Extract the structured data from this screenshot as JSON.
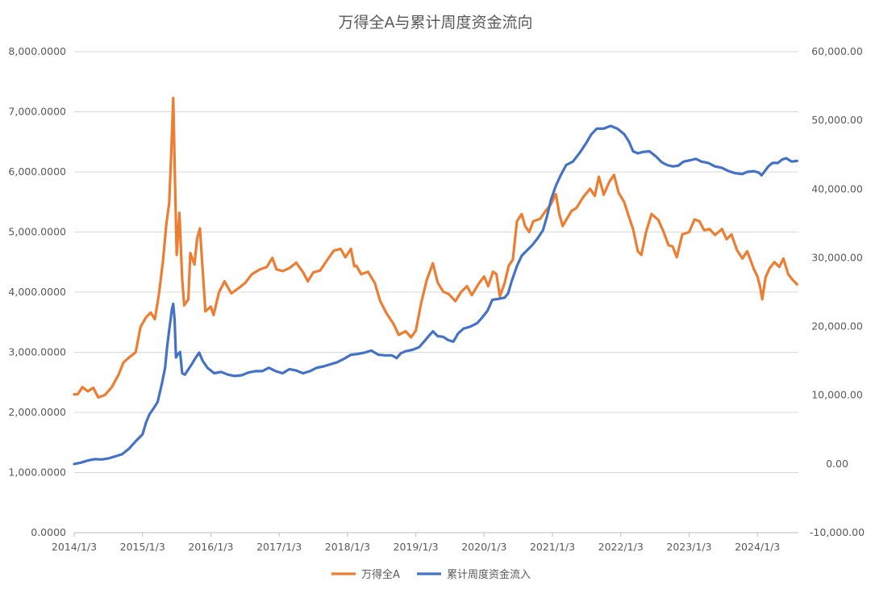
{
  "chart_data": {
    "type": "line",
    "title": "万得全A与累计周度资金流向",
    "x_ticks": [
      "2014/1/3",
      "2015/1/3",
      "2016/1/3",
      "2017/1/3",
      "2018/1/3",
      "2019/1/3",
      "2020/1/3",
      "2021/1/3",
      "2022/1/3",
      "2023/1/3",
      "2024/1/3"
    ],
    "x_range": [
      2014.0,
      2024.6
    ],
    "y_left": {
      "ylim": [
        0,
        8000
      ],
      "tick_values": [
        0,
        1000,
        2000,
        3000,
        4000,
        5000,
        6000,
        7000,
        8000
      ],
      "tick_labels": [
        "0.0000",
        "1,000.0000",
        "2,000.0000",
        "3,000.0000",
        "4,000.0000",
        "5,000.0000",
        "6,000.0000",
        "7,000.0000",
        "8,000.0000"
      ]
    },
    "y_right": {
      "ylim": [
        -10000,
        60000
      ],
      "tick_values": [
        -10000,
        0,
        10000,
        20000,
        30000,
        40000,
        50000,
        60000
      ],
      "tick_labels": [
        "-10,000.00",
        "0.00",
        "10,000.00",
        "20,000.00",
        "30,000.00",
        "40,000.00",
        "50,000.00",
        "60,000.00"
      ]
    },
    "grid": true,
    "legend_position": "bottom",
    "series": [
      {
        "name": "万得全A",
        "axis": "left",
        "color": "#ED7D31",
        "points": [
          [
            2014.0,
            2300
          ],
          [
            2014.05,
            2300
          ],
          [
            2014.12,
            2420
          ],
          [
            2014.2,
            2350
          ],
          [
            2014.28,
            2410
          ],
          [
            2014.35,
            2250
          ],
          [
            2014.45,
            2290
          ],
          [
            2014.55,
            2420
          ],
          [
            2014.65,
            2630
          ],
          [
            2014.72,
            2830
          ],
          [
            2014.82,
            2930
          ],
          [
            2014.9,
            3000
          ],
          [
            2014.97,
            3420
          ],
          [
            2015.05,
            3580
          ],
          [
            2015.12,
            3660
          ],
          [
            2015.18,
            3550
          ],
          [
            2015.24,
            3960
          ],
          [
            2015.3,
            4520
          ],
          [
            2015.35,
            5150
          ],
          [
            2015.39,
            5480
          ],
          [
            2015.42,
            6300
          ],
          [
            2015.45,
            7230
          ],
          [
            2015.48,
            5600
          ],
          [
            2015.5,
            4620
          ],
          [
            2015.54,
            5320
          ],
          [
            2015.58,
            4220
          ],
          [
            2015.61,
            3780
          ],
          [
            2015.67,
            3880
          ],
          [
            2015.7,
            4650
          ],
          [
            2015.76,
            4460
          ],
          [
            2015.8,
            4900
          ],
          [
            2015.84,
            5060
          ],
          [
            2015.88,
            4370
          ],
          [
            2015.92,
            3680
          ],
          [
            2016.0,
            3760
          ],
          [
            2016.04,
            3620
          ],
          [
            2016.12,
            4000
          ],
          [
            2016.2,
            4180
          ],
          [
            2016.3,
            3980
          ],
          [
            2016.4,
            4060
          ],
          [
            2016.5,
            4150
          ],
          [
            2016.6,
            4300
          ],
          [
            2016.72,
            4380
          ],
          [
            2016.82,
            4420
          ],
          [
            2016.9,
            4570
          ],
          [
            2016.96,
            4380
          ],
          [
            2017.05,
            4350
          ],
          [
            2017.15,
            4400
          ],
          [
            2017.25,
            4490
          ],
          [
            2017.35,
            4330
          ],
          [
            2017.42,
            4180
          ],
          [
            2017.5,
            4330
          ],
          [
            2017.6,
            4360
          ],
          [
            2017.7,
            4530
          ],
          [
            2017.8,
            4690
          ],
          [
            2017.9,
            4720
          ],
          [
            2017.97,
            4580
          ],
          [
            2018.05,
            4720
          ],
          [
            2018.1,
            4430
          ],
          [
            2018.13,
            4440
          ],
          [
            2018.2,
            4300
          ],
          [
            2018.3,
            4340
          ],
          [
            2018.4,
            4150
          ],
          [
            2018.48,
            3850
          ],
          [
            2018.57,
            3650
          ],
          [
            2018.67,
            3480
          ],
          [
            2018.75,
            3290
          ],
          [
            2018.85,
            3350
          ],
          [
            2018.93,
            3250
          ],
          [
            2019.0,
            3360
          ],
          [
            2019.08,
            3830
          ],
          [
            2019.16,
            4200
          ],
          [
            2019.25,
            4480
          ],
          [
            2019.32,
            4160
          ],
          [
            2019.4,
            4010
          ],
          [
            2019.48,
            3970
          ],
          [
            2019.58,
            3850
          ],
          [
            2019.66,
            4000
          ],
          [
            2019.75,
            4100
          ],
          [
            2019.82,
            3950
          ],
          [
            2019.92,
            4140
          ],
          [
            2020.0,
            4260
          ],
          [
            2020.06,
            4100
          ],
          [
            2020.13,
            4340
          ],
          [
            2020.18,
            4300
          ],
          [
            2020.23,
            3930
          ],
          [
            2020.3,
            4150
          ],
          [
            2020.36,
            4440
          ],
          [
            2020.42,
            4540
          ],
          [
            2020.48,
            5180
          ],
          [
            2020.55,
            5300
          ],
          [
            2020.6,
            5100
          ],
          [
            2020.66,
            5000
          ],
          [
            2020.72,
            5180
          ],
          [
            2020.82,
            5220
          ],
          [
            2020.9,
            5350
          ],
          [
            2020.97,
            5450
          ],
          [
            2021.05,
            5630
          ],
          [
            2021.1,
            5300
          ],
          [
            2021.15,
            5100
          ],
          [
            2021.2,
            5200
          ],
          [
            2021.28,
            5350
          ],
          [
            2021.35,
            5400
          ],
          [
            2021.45,
            5580
          ],
          [
            2021.55,
            5720
          ],
          [
            2021.62,
            5600
          ],
          [
            2021.68,
            5920
          ],
          [
            2021.75,
            5620
          ],
          [
            2021.83,
            5830
          ],
          [
            2021.9,
            5950
          ],
          [
            2021.97,
            5650
          ],
          [
            2022.05,
            5500
          ],
          [
            2022.12,
            5250
          ],
          [
            2022.18,
            5050
          ],
          [
            2022.25,
            4680
          ],
          [
            2022.3,
            4620
          ],
          [
            2022.37,
            5000
          ],
          [
            2022.45,
            5300
          ],
          [
            2022.55,
            5200
          ],
          [
            2022.62,
            5020
          ],
          [
            2022.7,
            4780
          ],
          [
            2022.76,
            4760
          ],
          [
            2022.82,
            4580
          ],
          [
            2022.9,
            4960
          ],
          [
            2023.0,
            5000
          ],
          [
            2023.08,
            5210
          ],
          [
            2023.15,
            5180
          ],
          [
            2023.22,
            5030
          ],
          [
            2023.3,
            5050
          ],
          [
            2023.38,
            4950
          ],
          [
            2023.48,
            5050
          ],
          [
            2023.55,
            4880
          ],
          [
            2023.62,
            4960
          ],
          [
            2023.7,
            4700
          ],
          [
            2023.78,
            4560
          ],
          [
            2023.85,
            4680
          ],
          [
            2023.95,
            4380
          ],
          [
            2024.0,
            4260
          ],
          [
            2024.04,
            4080
          ],
          [
            2024.07,
            3880
          ],
          [
            2024.12,
            4250
          ],
          [
            2024.18,
            4400
          ],
          [
            2024.25,
            4500
          ],
          [
            2024.32,
            4420
          ],
          [
            2024.38,
            4560
          ],
          [
            2024.45,
            4300
          ],
          [
            2024.52,
            4200
          ],
          [
            2024.58,
            4130
          ]
        ]
      },
      {
        "name": "累计周度资金流入",
        "axis": "right",
        "color": "#4472C4",
        "points": [
          [
            2014.0,
            0
          ],
          [
            2014.1,
            200
          ],
          [
            2014.2,
            500
          ],
          [
            2014.3,
            700
          ],
          [
            2014.4,
            650
          ],
          [
            2014.5,
            800
          ],
          [
            2014.6,
            1100
          ],
          [
            2014.7,
            1400
          ],
          [
            2014.8,
            2200
          ],
          [
            2014.9,
            3300
          ],
          [
            2015.0,
            4300
          ],
          [
            2015.05,
            6000
          ],
          [
            2015.1,
            7200
          ],
          [
            2015.17,
            8200
          ],
          [
            2015.22,
            9000
          ],
          [
            2015.28,
            11500
          ],
          [
            2015.33,
            14000
          ],
          [
            2015.36,
            17000
          ],
          [
            2015.39,
            19500
          ],
          [
            2015.41,
            21000
          ],
          [
            2015.43,
            22500
          ],
          [
            2015.45,
            23300
          ],
          [
            2015.47,
            21000
          ],
          [
            2015.49,
            15500
          ],
          [
            2015.52,
            16000
          ],
          [
            2015.55,
            16300
          ],
          [
            2015.58,
            13200
          ],
          [
            2015.62,
            13000
          ],
          [
            2015.66,
            13600
          ],
          [
            2015.72,
            14500
          ],
          [
            2015.78,
            15500
          ],
          [
            2015.83,
            16200
          ],
          [
            2015.88,
            15000
          ],
          [
            2015.95,
            14000
          ],
          [
            2016.05,
            13200
          ],
          [
            2016.15,
            13400
          ],
          [
            2016.25,
            13000
          ],
          [
            2016.35,
            12800
          ],
          [
            2016.45,
            12900
          ],
          [
            2016.55,
            13300
          ],
          [
            2016.65,
            13500
          ],
          [
            2016.75,
            13500
          ],
          [
            2016.85,
            14000
          ],
          [
            2016.95,
            13500
          ],
          [
            2017.05,
            13200
          ],
          [
            2017.15,
            13800
          ],
          [
            2017.25,
            13600
          ],
          [
            2017.35,
            13200
          ],
          [
            2017.45,
            13500
          ],
          [
            2017.55,
            14000
          ],
          [
            2017.65,
            14200
          ],
          [
            2017.75,
            14500
          ],
          [
            2017.85,
            14800
          ],
          [
            2017.95,
            15300
          ],
          [
            2018.05,
            15900
          ],
          [
            2018.15,
            16000
          ],
          [
            2018.25,
            16200
          ],
          [
            2018.35,
            16500
          ],
          [
            2018.45,
            15900
          ],
          [
            2018.55,
            15800
          ],
          [
            2018.65,
            15800
          ],
          [
            2018.72,
            15400
          ],
          [
            2018.78,
            16100
          ],
          [
            2018.85,
            16400
          ],
          [
            2018.95,
            16600
          ],
          [
            2019.05,
            17000
          ],
          [
            2019.12,
            17800
          ],
          [
            2019.18,
            18500
          ],
          [
            2019.25,
            19300
          ],
          [
            2019.32,
            18600
          ],
          [
            2019.4,
            18500
          ],
          [
            2019.48,
            18000
          ],
          [
            2019.55,
            17800
          ],
          [
            2019.62,
            19000
          ],
          [
            2019.7,
            19700
          ],
          [
            2019.8,
            20000
          ],
          [
            2019.9,
            20500
          ],
          [
            2019.97,
            21300
          ],
          [
            2020.05,
            22300
          ],
          [
            2020.12,
            23900
          ],
          [
            2020.2,
            24000
          ],
          [
            2020.3,
            24200
          ],
          [
            2020.35,
            24800
          ],
          [
            2020.4,
            26500
          ],
          [
            2020.48,
            28800
          ],
          [
            2020.55,
            30300
          ],
          [
            2020.62,
            31000
          ],
          [
            2020.7,
            31800
          ],
          [
            2020.78,
            32800
          ],
          [
            2020.86,
            34000
          ],
          [
            2020.92,
            36000
          ],
          [
            2020.98,
            38500
          ],
          [
            2021.05,
            40500
          ],
          [
            2021.12,
            42000
          ],
          [
            2021.2,
            43500
          ],
          [
            2021.3,
            44000
          ],
          [
            2021.4,
            45300
          ],
          [
            2021.5,
            46800
          ],
          [
            2021.57,
            48000
          ],
          [
            2021.65,
            48800
          ],
          [
            2021.75,
            48800
          ],
          [
            2021.85,
            49200
          ],
          [
            2021.95,
            48800
          ],
          [
            2022.05,
            48000
          ],
          [
            2022.12,
            46900
          ],
          [
            2022.18,
            45500
          ],
          [
            2022.25,
            45200
          ],
          [
            2022.32,
            45400
          ],
          [
            2022.42,
            45500
          ],
          [
            2022.52,
            44700
          ],
          [
            2022.6,
            43900
          ],
          [
            2022.68,
            43500
          ],
          [
            2022.76,
            43300
          ],
          [
            2022.84,
            43400
          ],
          [
            2022.92,
            44000
          ],
          [
            2023.02,
            44200
          ],
          [
            2023.1,
            44400
          ],
          [
            2023.18,
            44000
          ],
          [
            2023.28,
            43800
          ],
          [
            2023.38,
            43300
          ],
          [
            2023.48,
            43100
          ],
          [
            2023.58,
            42600
          ],
          [
            2023.68,
            42300
          ],
          [
            2023.78,
            42200
          ],
          [
            2023.85,
            42500
          ],
          [
            2023.95,
            42600
          ],
          [
            2024.02,
            42400
          ],
          [
            2024.06,
            42000
          ],
          [
            2024.1,
            42500
          ],
          [
            2024.16,
            43300
          ],
          [
            2024.22,
            43800
          ],
          [
            2024.3,
            43800
          ],
          [
            2024.36,
            44300
          ],
          [
            2024.42,
            44500
          ],
          [
            2024.5,
            44000
          ],
          [
            2024.58,
            44100
          ]
        ]
      }
    ]
  }
}
